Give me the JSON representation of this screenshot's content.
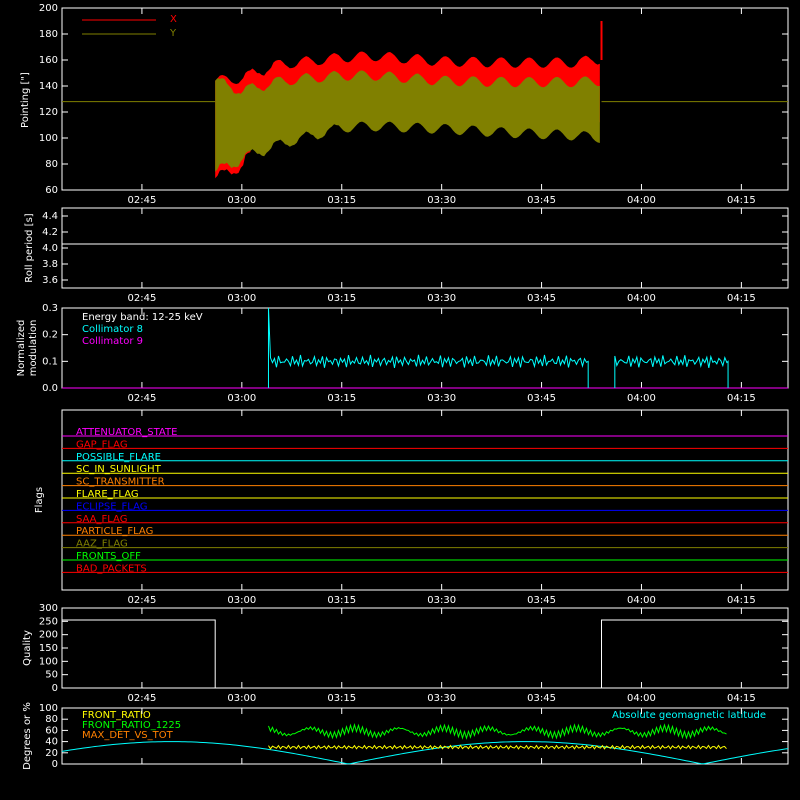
{
  "chart_data": [
    {
      "type": "line",
      "ylabel": "Pointing [\"]",
      "ylim": [
        60,
        200
      ],
      "yticks": [
        60,
        80,
        100,
        120,
        140,
        160,
        180,
        200
      ],
      "xlim": [
        " 02:33",
        "04:22"
      ],
      "xtick_labels": [
        "02:45",
        "03:00",
        "03:15",
        "03:30",
        "03:45",
        "04:00",
        "04:15"
      ],
      "series": [
        {
          "name": "X",
          "color": "#ff0000",
          "x": [
            "02:56",
            "03:00",
            "03:05",
            "03:10",
            "03:15",
            "03:20",
            "03:30",
            "03:40",
            "03:50",
            "03:54"
          ],
          "upper": [
            148,
            150,
            160,
            163,
            166,
            167,
            163,
            162,
            162,
            165
          ],
          "lower": [
            65,
            75,
            105,
            117,
            122,
            122,
            118,
            114,
            112,
            112
          ]
        },
        {
          "name": "Y",
          "color": "#808000",
          "x": [
            "02:56",
            "03:00",
            "03:05",
            "03:10",
            "03:15",
            "03:20",
            "03:30",
            "03:40",
            "03:50",
            "03:54"
          ],
          "upper": [
            148,
            140,
            147,
            150,
            152,
            152,
            148,
            147,
            147,
            148
          ],
          "lower": [
            70,
            80,
            90,
            97,
            104,
            105,
            103,
            100,
            98,
            96
          ],
          "baseline": 128
        }
      ]
    },
    {
      "type": "line",
      "ylabel": "Roll period [s]",
      "ylim": [
        3.5,
        4.5
      ],
      "yticks": [
        3.6,
        3.8,
        4.0,
        4.2,
        4.4
      ],
      "series": [
        {
          "name": "",
          "color": "#ffffff",
          "value": 4.05
        }
      ]
    },
    {
      "type": "line",
      "ylabel": "Normalized modulation",
      "ylim": [
        0,
        0.3
      ],
      "yticks": [
        0.0,
        0.1,
        0.2,
        0.3
      ],
      "annotation": "Energy band: 12-25 keV",
      "series": [
        {
          "name": "Collimator 8",
          "color": "#00ffff",
          "segments": [
            [
              "03:04",
              "03:52"
            ],
            [
              "03:56",
              "04:13"
            ]
          ],
          "level": 0.1,
          "spike": 0.3
        },
        {
          "name": "Collimator 9",
          "color": "#ff00ff",
          "value": 0.0
        }
      ]
    },
    {
      "type": "line",
      "ylabel": "Flags",
      "flags": [
        {
          "name": "ATTENUATOR_STATE",
          "color": "#ff00ff"
        },
        {
          "name": "GAP_FLAG",
          "color": "#ff0000"
        },
        {
          "name": "POSSIBLE_FLARE",
          "color": "#00ffff"
        },
        {
          "name": "SC_IN_SUNLIGHT",
          "color": "#ffff00"
        },
        {
          "name": "SC_TRANSMITTER",
          "color": "#ff8000"
        },
        {
          "name": "FLARE_FLAG",
          "color": "#ffff00"
        },
        {
          "name": "ECLIPSE_FLAG",
          "color": "#0000ff"
        },
        {
          "name": "SAA_FLAG",
          "color": "#ff0000"
        },
        {
          "name": "PARTICLE_FLAG",
          "color": "#ff8000"
        },
        {
          "name": "AAZ_FLAG",
          "color": "#808000"
        },
        {
          "name": "FRONTS_OFF",
          "color": "#00ff00"
        },
        {
          "name": "BAD_PACKETS",
          "color": "#ff0000"
        }
      ]
    },
    {
      "type": "line",
      "ylabel": "Quality",
      "ylim": [
        0,
        300
      ],
      "yticks": [
        0,
        50,
        100,
        150,
        200,
        250,
        300
      ],
      "series": [
        {
          "name": "",
          "color": "#ffffff",
          "x": [
            " 02:33",
            "02:56",
            "02:56",
            "03:54",
            "03:54",
            "04:22"
          ],
          "y": [
            255,
            255,
            0,
            0,
            255,
            255
          ]
        }
      ]
    },
    {
      "type": "line",
      "ylabel": "Degrees or %",
      "ylim": [
        0,
        100
      ],
      "yticks": [
        0,
        20,
        40,
        60,
        80,
        100
      ],
      "annotation": "Absolute geomagnetic latitude",
      "series": [
        {
          "name": "FRONT_RATIO",
          "color": "#ffff00",
          "level": 30
        },
        {
          "name": "FRONT_RATIO_1225",
          "color": "#00ff00",
          "level": 58
        },
        {
          "name": "MAX_DET_VS_TOT",
          "color": "#ff8000"
        },
        {
          "name": "Absolute geomagnetic latitude",
          "color": "#00ffff"
        }
      ]
    }
  ]
}
